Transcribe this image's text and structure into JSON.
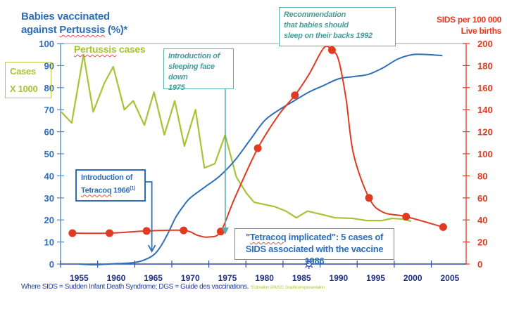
{
  "chart_data": {
    "type": "line",
    "title": "",
    "left_axis": {
      "label_lines": [
        "Babies vaccinated",
        "against Pertussis (%)*"
      ],
      "range": [
        0,
        100
      ],
      "ticks": [
        0,
        10,
        20,
        30,
        40,
        50,
        60,
        70,
        80,
        90,
        100
      ],
      "secondary_label_lines": [
        "Cases",
        "X 1000"
      ]
    },
    "right_axis": {
      "label_lines": [
        "SIDS per 100 000",
        "Live births"
      ],
      "range": [
        0,
        200
      ],
      "ticks": [
        0,
        20,
        40,
        60,
        80,
        100,
        120,
        140,
        160,
        180,
        200
      ]
    },
    "x_axis": {
      "range": [
        1952.5,
        2007.2
      ],
      "tick_labels": [
        "1955",
        "1960",
        "1965",
        "1970",
        "1975",
        "1980",
        "1985",
        "1990",
        "1995",
        "2000",
        "2005"
      ],
      "marker_year": 1986,
      "marker_symbol": "sun-marker"
    },
    "series": [
      {
        "name": "Pertussis cases",
        "axis": "left",
        "color": "#a8c334",
        "marker": false,
        "x": [
          1952.6,
          1954.0,
          1955.6,
          1956.9,
          1958.4,
          1959.6,
          1961.1,
          1962.3,
          1963.8,
          1965.1,
          1966.5,
          1967.9,
          1969.2,
          1970.7,
          1971.9,
          1973.3,
          1974.7,
          1976.2,
          1977.6,
          1978.6,
          1980.0,
          1981.4,
          1982.9,
          1984.3,
          1985.8,
          1987.6,
          1989.5,
          1991.9,
          1993.8,
          1995.8,
          1997.2,
          1998.6,
          1999.8
        ],
        "values": [
          69,
          64,
          95,
          69,
          82,
          89.5,
          70,
          74,
          63,
          78,
          58.6,
          74,
          53.5,
          70,
          43.6,
          45.5,
          58.6,
          39.5,
          32,
          28,
          27,
          26,
          24,
          21,
          24,
          22.6,
          21,
          20.7,
          19.7,
          19.7,
          20.7,
          20.4,
          19.4
        ]
      },
      {
        "name": "Babies vaccinated against Pertussis (%)",
        "axis": "left",
        "color": "#2e6fb9",
        "marker": false,
        "x": [
          1955,
          1957,
          1960,
          1962,
          1963.5,
          1965,
          1966,
          1967,
          1968,
          1969,
          1970,
          1972,
          1974,
          1976,
          1978,
          1980,
          1982,
          1984,
          1986,
          1988,
          1990,
          1992,
          1994,
          1996,
          1998,
          2000,
          2002,
          2004
        ],
        "values": [
          0,
          -0.3,
          0.2,
          0.5,
          1.5,
          4,
          8,
          14,
          21,
          26,
          30,
          35,
          40,
          47,
          56,
          65,
          70,
          74,
          78,
          81,
          84,
          85,
          86,
          89,
          93,
          95,
          95,
          94.5
        ]
      },
      {
        "name": "SIDS per 100 000 live births",
        "axis": "right",
        "color": "#e03a22",
        "marker": true,
        "x": [
          1954.1,
          1959.1,
          1964.1,
          1969.1,
          1971,
          1972.5,
          1974.1,
          1976,
          1979.1,
          1982,
          1984.1,
          1986,
          1988,
          1989.1,
          1990,
          1991,
          1992,
          1994.1,
          1996,
          1999.1,
          2004.1
        ],
        "values": [
          28,
          28,
          30,
          30.5,
          26,
          24.5,
          29.5,
          60,
          105,
          136,
          153,
          172,
          196,
          194,
          185,
          150,
          100,
          60,
          47,
          43,
          33.5
        ],
        "marker_x": [
          1954.1,
          1959.1,
          1964.1,
          1969.1,
          1974.1,
          1979.1,
          1984.1,
          1989.1,
          1994.1,
          1999.1,
          2004.1
        ],
        "marker_values": [
          28,
          28,
          30,
          30.5,
          29.5,
          105,
          153,
          194,
          60,
          43,
          33.5
        ]
      }
    ],
    "legend": {
      "pertussis_label": "Pertussis cases"
    },
    "annotations": {
      "recommendation": {
        "lines": [
          "Recommendation",
          "that babies should",
          "sleep on their backs 1992"
        ]
      },
      "face_down": {
        "lines": [
          "Introduction of",
          "sleeping face down",
          "1975"
        ],
        "arrow_year": 1975
      },
      "tetracoq": {
        "line1": "Introduction of",
        "line2_word": "Tetracoq",
        "line2_rest": " 1966",
        "superscript": "(1)",
        "arrow_year": 1965
      },
      "implicated": {
        "line1_quote_open": "\"",
        "line1_word": "Tetracoq",
        "line1_rest": " implicated\": 5 cases of",
        "line2": "SIDS associated with the vaccine 1986"
      }
    },
    "footnote": {
      "main": "Where SIDS = Sudden Infant Death Syndrome; DGS = Guide des vaccinations.",
      "sub": "*Estimation SPMSD, Graphical representation"
    }
  }
}
